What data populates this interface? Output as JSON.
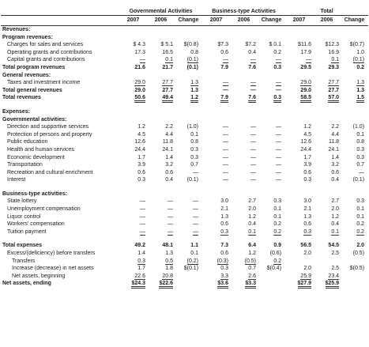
{
  "header": {
    "groups": [
      "Governmental Activities",
      "Business-type Activities",
      "Total"
    ],
    "columns": [
      "2007",
      "2006",
      "Change",
      "2007",
      "2006",
      "Change",
      "2007",
      "2006",
      "Change"
    ]
  },
  "table": {
    "rows": [
      {
        "label": "Revenues:",
        "bold": true
      },
      {
        "label": "Program revenues:",
        "bold": true
      },
      {
        "label": "Charges for sales and services",
        "cells": [
          "$ 4.3",
          "$ 5.1",
          "$(0.8)",
          "$7.3",
          "$7.2",
          "$ 0.1",
          "$11.6",
          "$12.3",
          "$(0.7)"
        ]
      },
      {
        "label": "Operating grants and contributions",
        "cells": [
          "17.3",
          "16.5",
          "0.8",
          "0.6",
          "0.4",
          "0.2",
          "17.9",
          "16.9",
          "1.0"
        ]
      },
      {
        "label": "Capital grants and contributions",
        "cells": [
          "—",
          "0.1",
          "(0.1)",
          "—",
          "—",
          "—",
          "—",
          "0.1",
          "(0.1)"
        ]
      },
      {
        "label": "Total program revenues",
        "bold": true,
        "cells": [
          "21.6",
          "21.7",
          "(0.1)",
          "7.9",
          "7.6",
          "0.3",
          "29.5",
          "29.3",
          "0.2"
        ]
      },
      {
        "label": "General revenues:",
        "bold": true
      },
      {
        "label": "Taxes and investment income",
        "cells": [
          "29.0",
          "27.7",
          "1.3",
          "—",
          "—",
          "—",
          "29.0",
          "27.7",
          "1.3"
        ]
      },
      {
        "label": "Total general revenues",
        "bold": true,
        "cells": [
          "29.0",
          "27.7",
          "1.3",
          "—",
          "—",
          "—",
          "29.0",
          "27.7",
          "1.3"
        ]
      },
      {
        "label": "Total revenues",
        "bold": true,
        "cells": [
          "50.6",
          "49.4",
          "1.2",
          "7.9",
          "7.6",
          "0.3",
          "58.5",
          "57.0",
          "1.5"
        ]
      },
      {
        "label": "Expenses:",
        "bold": true
      },
      {
        "label": "Governmental activities:",
        "bold": true
      },
      {
        "label": "Direction and supportive services",
        "cells": [
          "1.2",
          "2.2",
          "(1.0)",
          "—",
          "—",
          "—",
          "1.2",
          "2.2",
          "(1.0)"
        ]
      },
      {
        "label": "Protection of persons and property",
        "cells": [
          "4.5",
          "4.4",
          "0.1",
          "—",
          "—",
          "—",
          "4.5",
          "4.4",
          "0.1"
        ]
      },
      {
        "label": "Public education",
        "cells": [
          "12.6",
          "11.8",
          "0.8",
          "—",
          "—",
          "—",
          "12.6",
          "11.8",
          "0.8"
        ]
      },
      {
        "label": "Health and human services",
        "cells": [
          "24.4",
          "24.1",
          "0.3",
          "—",
          "—",
          "—",
          "24.4",
          "24.1",
          "0.3"
        ]
      },
      {
        "label": "Economic development",
        "cells": [
          "1.7",
          "1.4",
          "0.3",
          "—",
          "—",
          "—",
          "1.7",
          "1.4",
          "0.3"
        ]
      },
      {
        "label": "Transportation",
        "cells": [
          "3.9",
          "3.2",
          "0.7",
          "—",
          "—",
          "—",
          "3.9",
          "3.2",
          "0.7"
        ]
      },
      {
        "label": "Recreation and cultural enrichment",
        "cells": [
          "0.6",
          "0.6",
          "—",
          "—",
          "—",
          "—",
          "0.6",
          "0.6",
          "—"
        ]
      },
      {
        "label": "Interest",
        "cells": [
          "0.3",
          "0.4",
          "(0.1)",
          "—",
          "—",
          "—",
          "0.3",
          "0.4",
          "(0.1)"
        ]
      },
      {
        "label": "Business-type activities:",
        "bold": true
      },
      {
        "label": "State lottery",
        "cells": [
          "—",
          "—",
          "—",
          "3.0",
          "2.7",
          "0.3",
          "3.0",
          "2.7",
          "0.3"
        ]
      },
      {
        "label": "Unemployment compensation",
        "cells": [
          "—",
          "—",
          "—",
          "2.1",
          "2.0",
          "0.1",
          "2.1",
          "2.0",
          "0.1"
        ]
      },
      {
        "label": "Liquor control",
        "cells": [
          "—",
          "—",
          "—",
          "1.3",
          "1.2",
          "0.1",
          "1.3",
          "1.2",
          "0.1"
        ]
      },
      {
        "label": "Workers' compensation",
        "cells": [
          "—",
          "—",
          "—",
          "0.6",
          "0.4",
          "0.2",
          "0.6",
          "0.4",
          "0.2"
        ]
      },
      {
        "label": "Tuition payment",
        "cells": [
          "—",
          "—",
          "—",
          "0.3",
          "0.1",
          "0.2",
          "0.3",
          "0.1",
          "0.2"
        ]
      },
      {
        "label": "Total expenses",
        "bold": true,
        "cells": [
          "49.2",
          "48.1",
          "1.1",
          "7.3",
          "6.4",
          "0.9",
          "56.5",
          "54.5",
          "2.0"
        ]
      },
      {
        "label": "Excess/(deficiency) before transfers",
        "cells": [
          "1.4",
          "1.3",
          "0.1",
          "0.6",
          "1.2",
          "(0.6)",
          "2.0",
          "2.5",
          "(0.5)"
        ]
      },
      {
        "label": "Transfers",
        "cells": [
          "0.3",
          "0.5",
          "(0.2)",
          "(0.3)",
          "(0.5)",
          "0.2",
          null,
          null,
          null
        ]
      },
      {
        "label": "Increase (decrease) in net assets",
        "cells": [
          "1.7",
          "1.8",
          "$(0.1)",
          "0.3",
          "0.7",
          "$(0.4)",
          "2.0",
          "2.5",
          "$(0.5)"
        ]
      },
      {
        "label": "Net assets, beginning",
        "cells": [
          "22.6",
          "20.8",
          null,
          "3.3",
          "2.6",
          null,
          "25.9",
          "23.4",
          null
        ]
      },
      {
        "label": "Net assets, ending",
        "bold": true,
        "cells": [
          "$24.3",
          "$22.6",
          null,
          "$3.6",
          "$3.3",
          null,
          "$27.9",
          "$25.9",
          null
        ]
      }
    ]
  }
}
